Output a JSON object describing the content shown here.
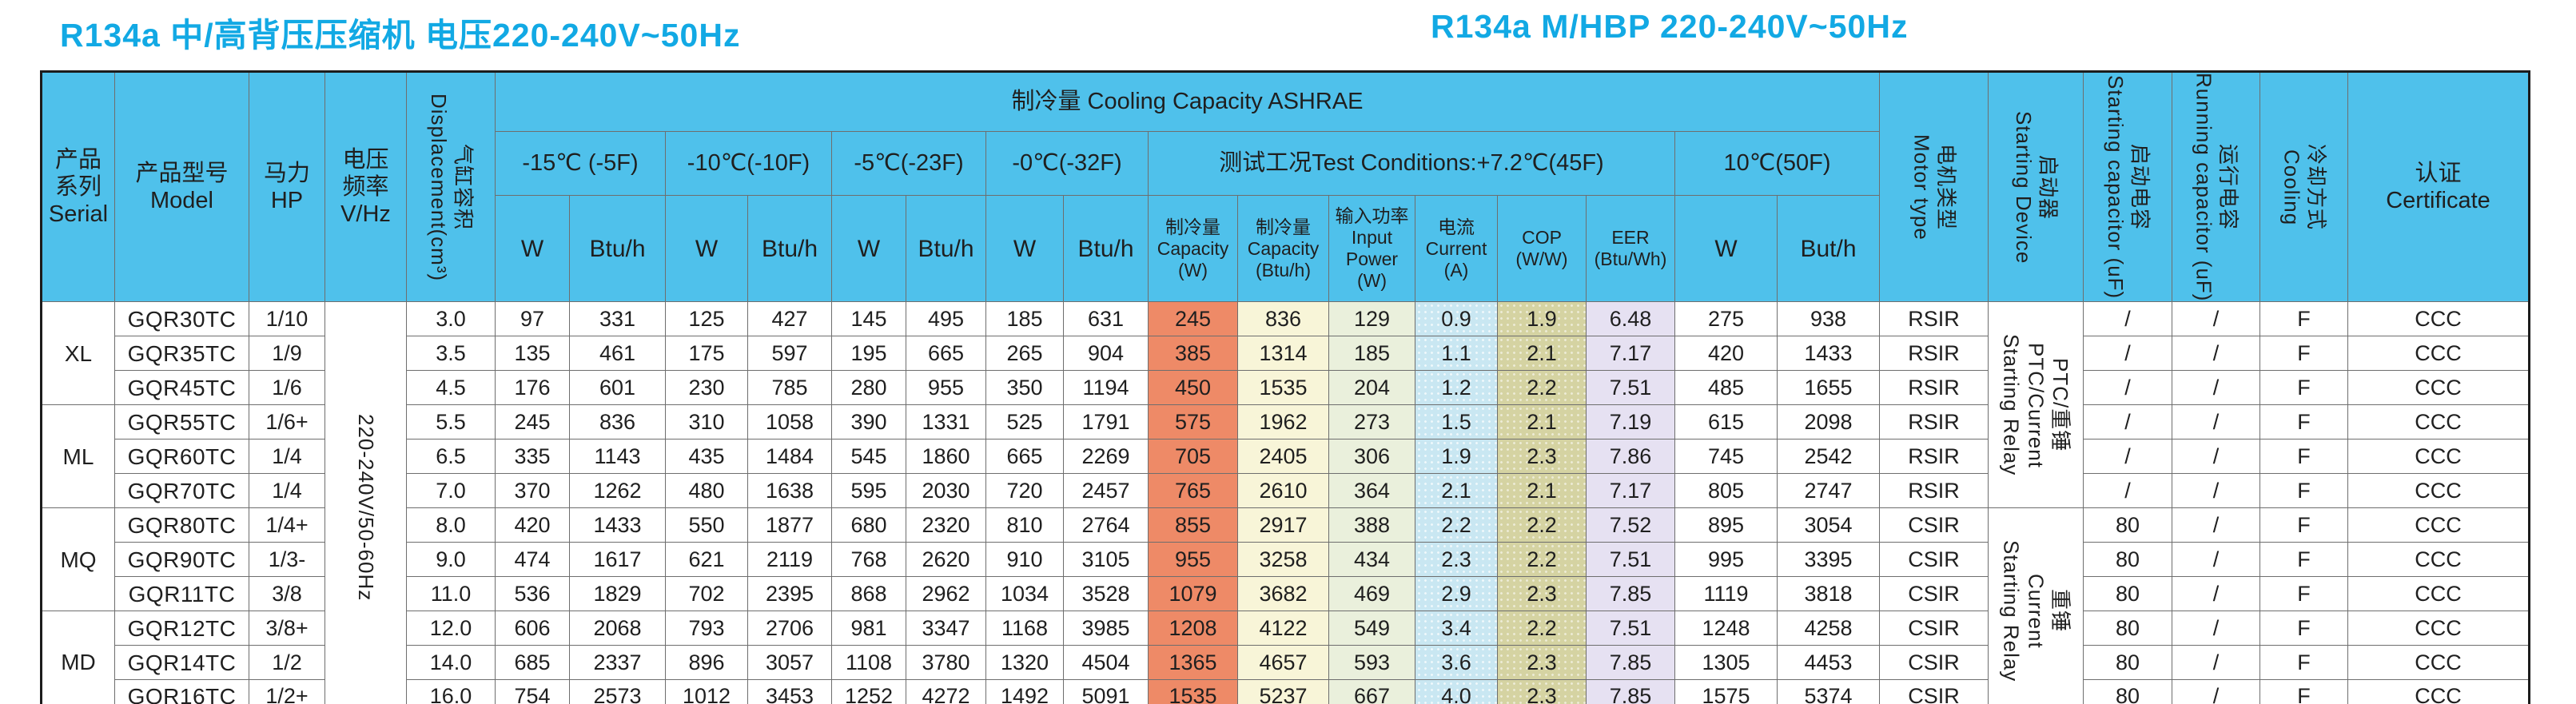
{
  "titles": {
    "left": "R134a 中/高背压压缩机  电压220-240V~50Hz",
    "right": "R134a M/HBP 220-240V~50Hz"
  },
  "colors": {
    "header_blue": "#4fc1eb",
    "title_cyan": "#12a9e4",
    "capacity_w": "#ee8a67",
    "capacity_btuh": "#f8f5d8",
    "input_power": "#eaf0dc",
    "current": "#c9e7f2",
    "cop": "#d5d3a2",
    "eer": "#e6e1f2"
  },
  "header": {
    "serial": "产品\n系列\nSerial",
    "model": "产品型号\nModel",
    "hp": "马力HP",
    "vhz": "电压\n频率\nV/Hz",
    "displacement": "气缸容积\nDisplacement(cm³)",
    "cooling_capacity_band": "制冷量  Cooling Capacity ASHRAE",
    "temps": [
      "-15℃ (-5F)",
      "-10℃(-10F)",
      "-5℃(-23F)",
      "-0℃(-32F)"
    ],
    "test_conditions": "测试工况Test Conditions:+7.2℃(45F)",
    "temp_10": "10℃(50F)",
    "unit_w": "W",
    "unit_btuh": "Btu/h",
    "unit_buth": "But/h",
    "capacity_w": "制冷量\nCapacity\n(W)",
    "capacity_btuh": "制冷量\nCapacity\n(Btu/h)",
    "input_power": "输入功率\nInput\nPower\n(W)",
    "current": "电流\nCurrent\n(A)",
    "cop": "COP\n(W/W)",
    "eer": "EER\n(Btu/Wh)",
    "motor_type": "电机类型\nMotor type",
    "starting_device": "启动器\nStarting Device",
    "starting_capacitor": "启动电容\nStarting capacitor (uF)",
    "running_capacitor": "运行电容\nRunning capacitor (uF)",
    "cooling": "冷却方式\nCooling",
    "certificate": "认证\nCertificate"
  },
  "col_types": [
    "serial",
    "model",
    "hp",
    "vhz",
    "disp",
    "w15",
    "b15",
    "w10f",
    "b10f",
    "w5",
    "b5",
    "w0",
    "b0",
    "capw",
    "capb",
    "inp",
    "cur",
    "cop",
    "eer",
    "w10c",
    "b10c",
    "motor",
    "startdev",
    "startcap",
    "runcap",
    "cooling",
    "cert"
  ],
  "rows": [
    [
      {
        "v": "XL",
        "rs": 3
      },
      "GQR30TC",
      "1/10",
      {
        "v": "220-240V/50-60Hz",
        "rs": 12,
        "cls": "vert"
      },
      "3.0",
      "97",
      "331",
      "125",
      "427",
      "145",
      "495",
      "185",
      "631",
      "245",
      "836",
      "129",
      "0.9",
      "1.9",
      "6.48",
      "275",
      "938",
      "RSIR",
      {
        "v": "PTC/重锤\nPTC/Current\nStarting Relay",
        "rs": 6,
        "cls": "vert"
      },
      "/",
      "/",
      "F",
      "CCC"
    ],
    [
      "GQR35TC",
      "1/9",
      "3.5",
      "135",
      "461",
      "175",
      "597",
      "195",
      "665",
      "265",
      "904",
      "385",
      "1314",
      "185",
      "1.1",
      "2.1",
      "7.17",
      "420",
      "1433",
      "RSIR",
      "/",
      "/",
      "F",
      "CCC"
    ],
    [
      "GQR45TC",
      "1/6",
      "4.5",
      "176",
      "601",
      "230",
      "785",
      "280",
      "955",
      "350",
      "1194",
      "450",
      "1535",
      "204",
      "1.2",
      "2.2",
      "7.51",
      "485",
      "1655",
      "RSIR",
      "/",
      "/",
      "F",
      "CCC"
    ],
    [
      {
        "v": "ML",
        "rs": 3
      },
      "GQR55TC",
      "1/6+",
      "5.5",
      "245",
      "836",
      "310",
      "1058",
      "390",
      "1331",
      "525",
      "1791",
      "575",
      "1962",
      "273",
      "1.5",
      "2.1",
      "7.19",
      "615",
      "2098",
      "RSIR",
      "/",
      "/",
      "F",
      "CCC"
    ],
    [
      "GQR60TC",
      "1/4",
      "6.5",
      "335",
      "1143",
      "435",
      "1484",
      "545",
      "1860",
      "665",
      "2269",
      "705",
      "2405",
      "306",
      "1.9",
      "2.3",
      "7.86",
      "745",
      "2542",
      "RSIR",
      "/",
      "/",
      "F",
      "CCC"
    ],
    [
      "GQR70TC",
      "1/4",
      "7.0",
      "370",
      "1262",
      "480",
      "1638",
      "595",
      "2030",
      "720",
      "2457",
      "765",
      "2610",
      "364",
      "2.1",
      "2.1",
      "7.17",
      "805",
      "2747",
      "RSIR",
      "/",
      "/",
      "F",
      "CCC"
    ],
    [
      {
        "v": "MQ",
        "rs": 3
      },
      "GQR80TC",
      "1/4+",
      "8.0",
      "420",
      "1433",
      "550",
      "1877",
      "680",
      "2320",
      "810",
      "2764",
      "855",
      "2917",
      "388",
      "2.2",
      "2.2",
      "7.52",
      "895",
      "3054",
      "CSIR",
      {
        "v": "重锤\nCurrent\nStarting Relay",
        "rs": 6,
        "cls": "vert"
      },
      "80",
      "/",
      "F",
      "CCC"
    ],
    [
      "GQR90TC",
      "1/3-",
      "9.0",
      "474",
      "1617",
      "621",
      "2119",
      "768",
      "2620",
      "910",
      "3105",
      "955",
      "3258",
      "434",
      "2.3",
      "2.2",
      "7.51",
      "995",
      "3395",
      "CSIR",
      "80",
      "/",
      "F",
      "CCC"
    ],
    [
      "GQR11TC",
      "3/8",
      "11.0",
      "536",
      "1829",
      "702",
      "2395",
      "868",
      "2962",
      "1034",
      "3528",
      "1079",
      "3682",
      "469",
      "2.9",
      "2.3",
      "7.85",
      "1119",
      "3818",
      "CSIR",
      "80",
      "/",
      "F",
      "CCC"
    ],
    [
      {
        "v": "MD",
        "rs": 3
      },
      "GQR12TC",
      "3/8+",
      "12.0",
      "606",
      "2068",
      "793",
      "2706",
      "981",
      "3347",
      "1168",
      "3985",
      "1208",
      "4122",
      "549",
      "3.4",
      "2.2",
      "7.51",
      "1248",
      "4258",
      "CSIR",
      "80",
      "/",
      "F",
      "CCC"
    ],
    [
      "GQR14TC",
      "1/2",
      "14.0",
      "685",
      "2337",
      "896",
      "3057",
      "1108",
      "3780",
      "1320",
      "4504",
      "1365",
      "4657",
      "593",
      "3.6",
      "2.3",
      "7.85",
      "1305",
      "4453",
      "CSIR",
      "80",
      "/",
      "F",
      "CCC"
    ],
    [
      "GQR16TC",
      "1/2+",
      "16.0",
      "754",
      "2573",
      "1012",
      "3453",
      "1252",
      "4272",
      "1492",
      "5091",
      "1535",
      "5237",
      "667",
      "4.0",
      "2.3",
      "7.85",
      "1575",
      "5374",
      "CSIR",
      "80",
      "/",
      "F",
      "CCC"
    ]
  ]
}
